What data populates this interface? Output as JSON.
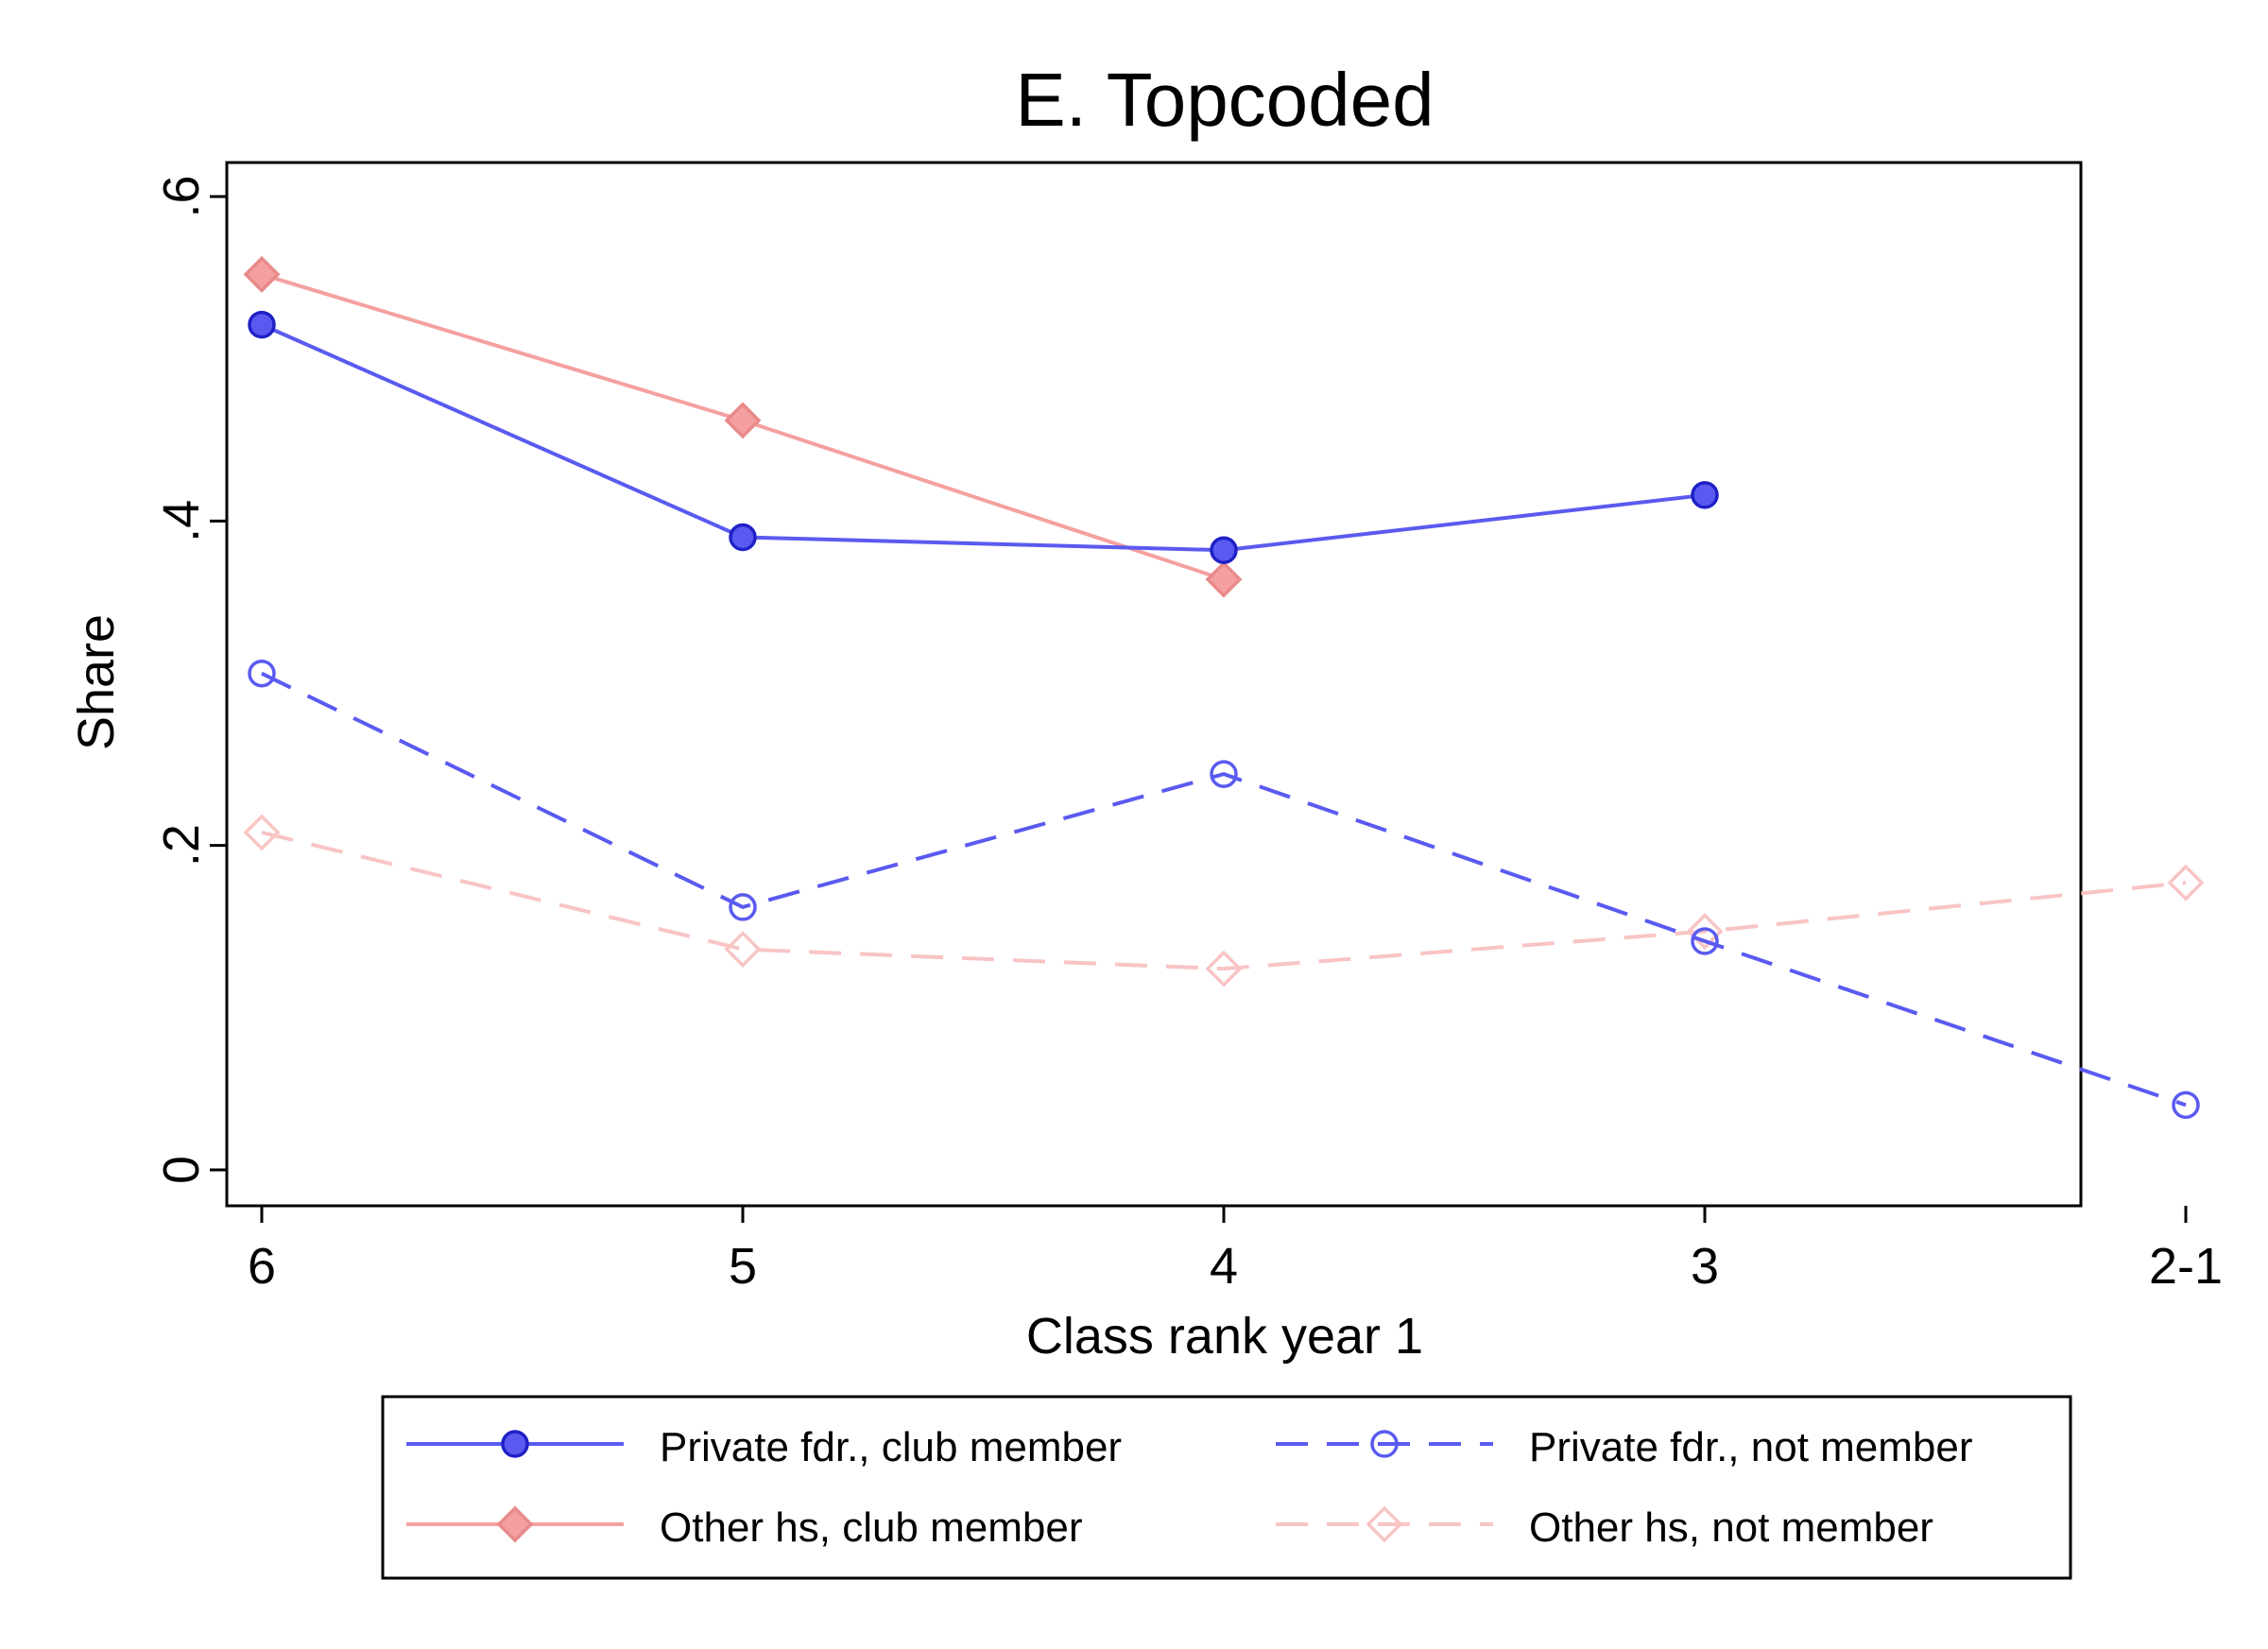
{
  "chart_data": {
    "type": "line",
    "title": "E. Topcoded",
    "xlabel": "Class rank year 1",
    "ylabel": "Share",
    "categories": [
      "6",
      "5",
      "4",
      "3",
      "2-1"
    ],
    "ylim": [
      0,
      0.6
    ],
    "yticks": [
      {
        "value": 0,
        "label": "0"
      },
      {
        "value": 0.2,
        "label": ".2"
      },
      {
        "value": 0.4,
        "label": ".4"
      },
      {
        "value": 0.6,
        "label": ".6"
      }
    ],
    "grid": false,
    "legend_position": "bottom",
    "series": [
      {
        "name": "Private fdr., club member",
        "values": [
          0.521,
          0.39,
          0.382,
          0.416,
          null
        ],
        "color": "#5a5af0",
        "line": "solid",
        "marker": "filled-circle"
      },
      {
        "name": "Private fdr., not member",
        "values": [
          0.306,
          0.162,
          0.244,
          0.141,
          0.04
        ],
        "color": "#5a5af0",
        "line": "dashed",
        "marker": "hollow-circle"
      },
      {
        "name": "Other hs, club member",
        "values": [
          0.552,
          0.462,
          0.364,
          null,
          null
        ],
        "color": "#f5a0a0",
        "line": "solid",
        "marker": "filled-diamond"
      },
      {
        "name": "Other hs, not member",
        "values": [
          0.208,
          0.136,
          0.124,
          0.147,
          0.177
        ],
        "color": "#f9c4c4",
        "line": "dashed",
        "marker": "hollow-diamond"
      }
    ]
  }
}
